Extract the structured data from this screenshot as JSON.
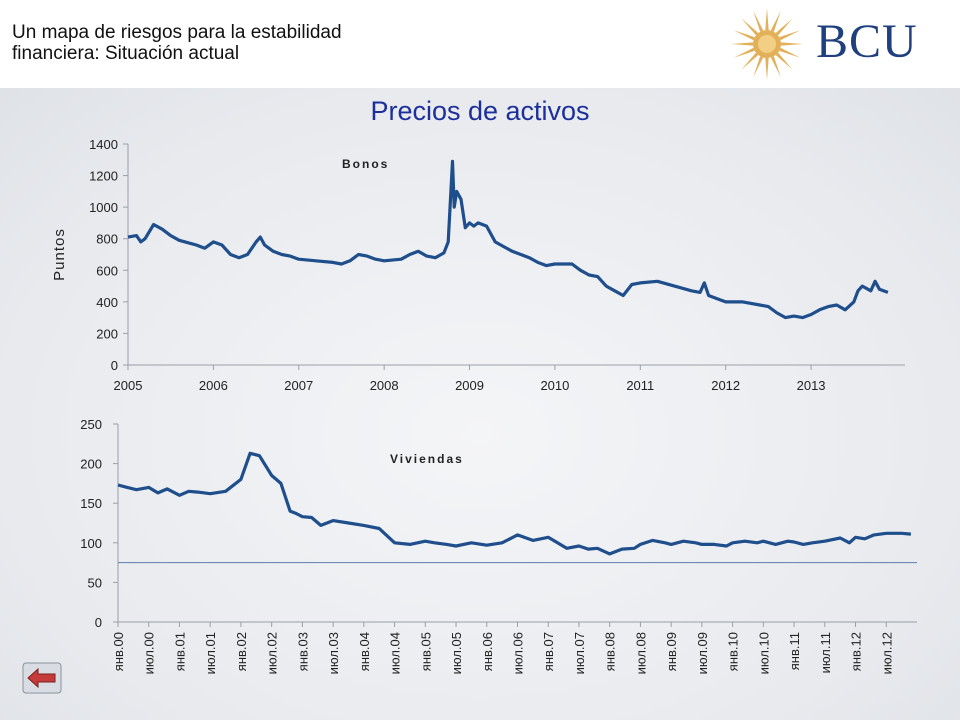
{
  "header": {
    "title_line1": "Un mapa de riesgos para la estabilidad",
    "title_line2": "financiera: Situación actual",
    "logo_text": "BCU"
  },
  "slide_title": "Precios de activos",
  "colors": {
    "series": "#1f4e8c",
    "title": "#1c2f9a",
    "logo": "#1f3f7f",
    "sun": "#e3b05a"
  },
  "icons": {
    "back": "back-arrow-icon",
    "logo": "sun-emblem-icon"
  },
  "chart_data": [
    {
      "type": "line",
      "title": "",
      "annotation": "Bonos",
      "ylabel": "Puntos",
      "xlabel": "",
      "ylim": [
        0,
        1400
      ],
      "yticks": [
        0,
        200,
        400,
        600,
        800,
        1000,
        1200,
        1400
      ],
      "xlim": [
        2005,
        2014.1
      ],
      "xticks": [
        "2005",
        "2006",
        "2007",
        "2008",
        "2009",
        "2010",
        "2011",
        "2012",
        "2013"
      ],
      "grid": false,
      "series": [
        {
          "x": [
            2005.0,
            2005.1,
            2005.15,
            2005.2,
            2005.3,
            2005.4,
            2005.5,
            2005.6,
            2005.7,
            2005.8,
            2005.9,
            2006.0,
            2006.1,
            2006.2,
            2006.3,
            2006.4,
            2006.5,
            2006.55,
            2006.6,
            2006.7,
            2006.8,
            2006.9,
            2007.0,
            2007.2,
            2007.4,
            2007.5,
            2007.6,
            2007.7,
            2007.8,
            2007.9,
            2008.0,
            2008.2,
            2008.3,
            2008.4,
            2008.5,
            2008.6,
            2008.7,
            2008.75,
            2008.8,
            2008.82,
            2008.85,
            2008.9,
            2008.95,
            2009.0,
            2009.05,
            2009.1,
            2009.2,
            2009.3,
            2009.4,
            2009.5,
            2009.6,
            2009.7,
            2009.8,
            2009.9,
            2010.0,
            2010.2,
            2010.3,
            2010.4,
            2010.5,
            2010.6,
            2010.7,
            2010.8,
            2010.9,
            2011.0,
            2011.2,
            2011.4,
            2011.6,
            2011.7,
            2011.75,
            2011.8,
            2011.9,
            2012.0,
            2012.2,
            2012.4,
            2012.5,
            2012.6,
            2012.7,
            2012.8,
            2012.9,
            2013.0,
            2013.1,
            2013.2,
            2013.3,
            2013.4,
            2013.5,
            2013.55,
            2013.6,
            2013.7,
            2013.75,
            2013.8,
            2013.9
          ],
          "values": [
            810,
            820,
            780,
            800,
            890,
            860,
            820,
            790,
            775,
            760,
            740,
            780,
            760,
            700,
            680,
            700,
            780,
            810,
            760,
            720,
            700,
            690,
            670,
            660,
            650,
            640,
            660,
            700,
            690,
            670,
            660,
            670,
            700,
            720,
            690,
            680,
            710,
            780,
            1290,
            1000,
            1100,
            1050,
            870,
            900,
            880,
            900,
            880,
            780,
            750,
            720,
            700,
            680,
            650,
            630,
            640,
            640,
            600,
            570,
            560,
            500,
            470,
            440,
            510,
            520,
            530,
            500,
            470,
            460,
            520,
            440,
            420,
            400,
            400,
            380,
            370,
            330,
            300,
            310,
            300,
            320,
            350,
            370,
            380,
            350,
            400,
            470,
            500,
            470,
            530,
            480,
            460
          ]
        }
      ]
    },
    {
      "type": "line",
      "title": "",
      "annotation": "Viviendas",
      "ylabel": "",
      "xlabel": "",
      "ylim": [
        0,
        250
      ],
      "yticks": [
        0,
        50,
        100,
        150,
        200,
        250
      ],
      "xlim": [
        0,
        26
      ],
      "xticks": [
        "янв.00",
        "июл.00",
        "янв.01",
        "июл.01",
        "янв.02",
        "июл.02",
        "янв.03",
        "июл.03",
        "янв.04",
        "июл.04",
        "янв.05",
        "июл.05",
        "янв.06",
        "июл.06",
        "янв.07",
        "июл.07",
        "янв.08",
        "июл.08",
        "янв.09",
        "июл.09",
        "янв.10",
        "июл.10",
        "янв.11",
        "июл.11",
        "янв.12",
        "июл.12"
      ],
      "reference_line": 75,
      "grid": false,
      "series": [
        {
          "x": [
            0,
            0.3,
            0.6,
            1,
            1.3,
            1.6,
            2,
            2.3,
            2.6,
            3,
            3.5,
            4,
            4.3,
            4.6,
            5,
            5.3,
            5.6,
            5.8,
            6,
            6.3,
            6.6,
            7,
            7.5,
            8,
            8.5,
            9,
            9.5,
            10,
            10.3,
            10.7,
            11,
            11.5,
            12,
            12.5,
            13,
            13.5,
            14,
            14.3,
            14.6,
            15,
            15.3,
            15.6,
            16,
            16.4,
            16.8,
            17,
            17.4,
            17.8,
            18,
            18.4,
            18.8,
            19,
            19.4,
            19.8,
            20,
            20.4,
            20.8,
            21,
            21.4,
            21.8,
            22,
            22.3,
            22.6,
            23,
            23.5,
            23.8,
            24,
            24.3,
            24.6,
            25,
            25.5,
            25.8
          ],
          "values": [
            173,
            170,
            167,
            170,
            163,
            168,
            160,
            165,
            164,
            162,
            165,
            180,
            213,
            210,
            185,
            175,
            140,
            137,
            133,
            132,
            122,
            128,
            125,
            122,
            118,
            100,
            98,
            102,
            100,
            98,
            96,
            100,
            97,
            100,
            110,
            103,
            107,
            100,
            93,
            96,
            92,
            93,
            86,
            92,
            93,
            98,
            103,
            100,
            98,
            102,
            100,
            98,
            98,
            96,
            100,
            102,
            100,
            102,
            98,
            102,
            101,
            98,
            100,
            102,
            106,
            100,
            107,
            105,
            110,
            112,
            112,
            111
          ]
        }
      ]
    }
  ]
}
